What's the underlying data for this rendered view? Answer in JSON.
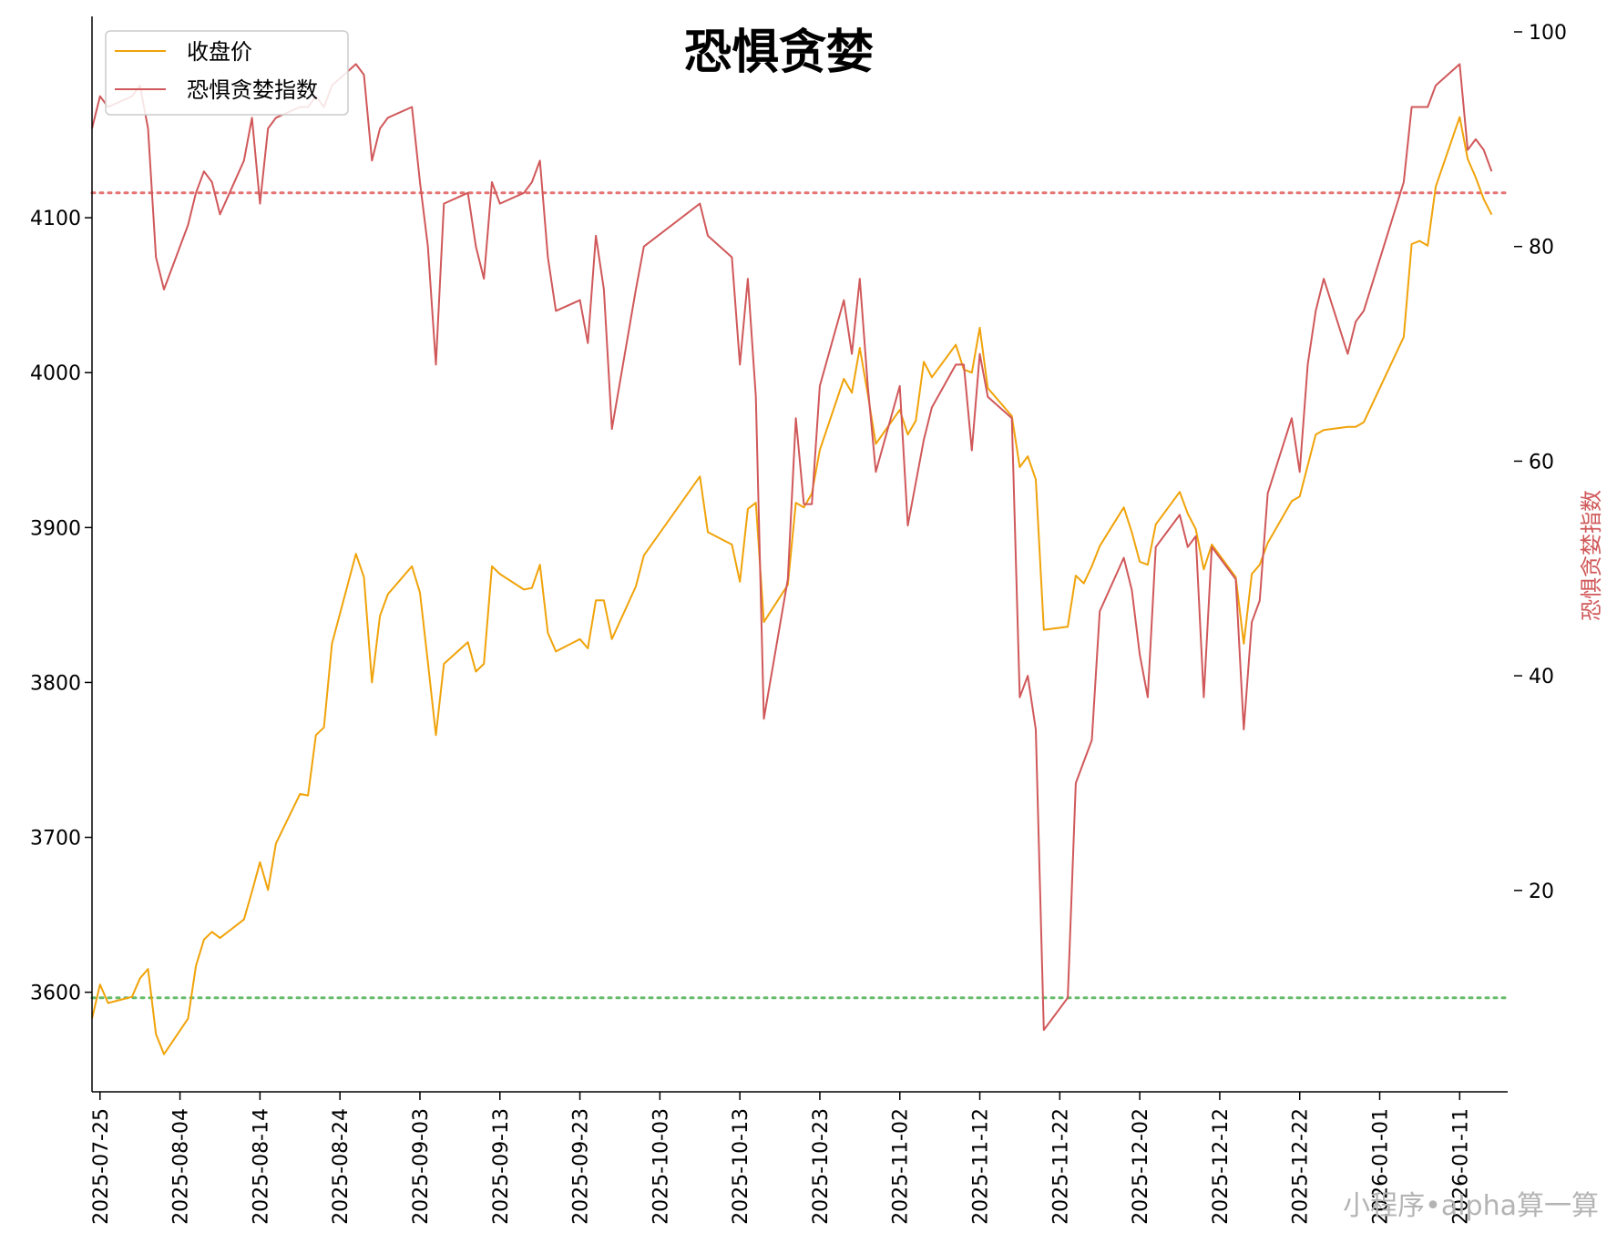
{
  "chart_data": {
    "type": "line",
    "title": "恐惧贪婪",
    "ylabel_right": "恐惧贪婪指数",
    "ylim_left": [
      3541,
      4220
    ],
    "ylim_right": [
      2,
      100
    ],
    "yticks_left": [
      3600,
      3700,
      3800,
      3900,
      4000,
      4100
    ],
    "yticks_right": [
      20,
      40,
      60,
      80,
      100
    ],
    "x_start": "2025-07-24",
    "x_end": "2026-01-17",
    "x_tick_labels": [
      "2025-07-25",
      "2025-08-04",
      "2025-08-14",
      "2025-08-24",
      "2025-09-03",
      "2025-09-13",
      "2025-09-23",
      "2025-10-03",
      "2025-10-13",
      "2025-10-23",
      "2025-11-02",
      "2025-11-12",
      "2025-11-22",
      "2025-12-02",
      "2025-12-12",
      "2025-12-22",
      "2026-01-01",
      "2026-01-11"
    ],
    "legend_position": "top-left",
    "grid": false,
    "reference_lines_right_axis": [
      {
        "value": 85,
        "color": "#e57373"
      },
      {
        "value": 10,
        "color": "#66bb6a"
      }
    ],
    "series": [
      {
        "name": "收盘价",
        "axis": "left",
        "color": "#f0a30a",
        "points": [
          [
            "2025-07-24",
            3583
          ],
          [
            "2025-07-25",
            3605
          ],
          [
            "2025-07-26",
            3593
          ],
          [
            "2025-07-29",
            3597
          ],
          [
            "2025-07-30",
            3609
          ],
          [
            "2025-07-31",
            3615
          ],
          [
            "2025-08-01",
            3573
          ],
          [
            "2025-08-02",
            3560
          ],
          [
            "2025-08-05",
            3583
          ],
          [
            "2025-08-06",
            3617
          ],
          [
            "2025-08-07",
            3634
          ],
          [
            "2025-08-08",
            3639
          ],
          [
            "2025-08-09",
            3635
          ],
          [
            "2025-08-12",
            3647
          ],
          [
            "2025-08-13",
            3665
          ],
          [
            "2025-08-14",
            3684
          ],
          [
            "2025-08-15",
            3666
          ],
          [
            "2025-08-16",
            3696
          ],
          [
            "2025-08-19",
            3728
          ],
          [
            "2025-08-20",
            3727
          ],
          [
            "2025-08-21",
            3766
          ],
          [
            "2025-08-22",
            3771
          ],
          [
            "2025-08-23",
            3825
          ],
          [
            "2025-08-26",
            3883
          ],
          [
            "2025-08-27",
            3868
          ],
          [
            "2025-08-28",
            3800
          ],
          [
            "2025-08-29",
            3843
          ],
          [
            "2025-08-30",
            3857
          ],
          [
            "2025-09-02",
            3875
          ],
          [
            "2025-09-03",
            3858
          ],
          [
            "2025-09-04",
            3813
          ],
          [
            "2025-09-05",
            3766
          ],
          [
            "2025-09-06",
            3812
          ],
          [
            "2025-09-09",
            3826
          ],
          [
            "2025-09-10",
            3807
          ],
          [
            "2025-09-11",
            3812
          ],
          [
            "2025-09-12",
            3875
          ],
          [
            "2025-09-13",
            3870
          ],
          [
            "2025-09-16",
            3860
          ],
          [
            "2025-09-17",
            3861
          ],
          [
            "2025-09-18",
            3876
          ],
          [
            "2025-09-19",
            3832
          ],
          [
            "2025-09-20",
            3820
          ],
          [
            "2025-09-23",
            3828
          ],
          [
            "2025-09-24",
            3822
          ],
          [
            "2025-09-25",
            3853
          ],
          [
            "2025-09-26",
            3853
          ],
          [
            "2025-09-27",
            3828
          ],
          [
            "2025-09-30",
            3862
          ],
          [
            "2025-10-01",
            3882
          ],
          [
            "2025-10-08",
            3933
          ],
          [
            "2025-10-09",
            3897
          ],
          [
            "2025-10-12",
            3889
          ],
          [
            "2025-10-13",
            3865
          ],
          [
            "2025-10-14",
            3912
          ],
          [
            "2025-10-15",
            3916
          ],
          [
            "2025-10-16",
            3839
          ],
          [
            "2025-10-19",
            3863
          ],
          [
            "2025-10-20",
            3916
          ],
          [
            "2025-10-21",
            3913
          ],
          [
            "2025-10-22",
            3922
          ],
          [
            "2025-10-23",
            3950
          ],
          [
            "2025-10-26",
            3996
          ],
          [
            "2025-10-27",
            3987
          ],
          [
            "2025-10-28",
            4016
          ],
          [
            "2025-10-29",
            3986
          ],
          [
            "2025-10-30",
            3954
          ],
          [
            "2025-11-02",
            3976
          ],
          [
            "2025-11-03",
            3960
          ],
          [
            "2025-11-04",
            3969
          ],
          [
            "2025-11-05",
            4007
          ],
          [
            "2025-11-06",
            3997
          ],
          [
            "2025-11-09",
            4018
          ],
          [
            "2025-11-10",
            4002
          ],
          [
            "2025-11-11",
            4000
          ],
          [
            "2025-11-12",
            4029
          ],
          [
            "2025-11-13",
            3990
          ],
          [
            "2025-11-16",
            3972
          ],
          [
            "2025-11-17",
            3939
          ],
          [
            "2025-11-18",
            3946
          ],
          [
            "2025-11-19",
            3931
          ],
          [
            "2025-11-20",
            3834
          ],
          [
            "2025-11-23",
            3836
          ],
          [
            "2025-11-24",
            3869
          ],
          [
            "2025-11-25",
            3864
          ],
          [
            "2025-11-26",
            3875
          ],
          [
            "2025-11-27",
            3888
          ],
          [
            "2025-11-30",
            3913
          ],
          [
            "2025-12-01",
            3897
          ],
          [
            "2025-12-02",
            3878
          ],
          [
            "2025-12-03",
            3876
          ],
          [
            "2025-12-04",
            3902
          ],
          [
            "2025-12-07",
            3923
          ],
          [
            "2025-12-08",
            3909
          ],
          [
            "2025-12-09",
            3899
          ],
          [
            "2025-12-10",
            3873
          ],
          [
            "2025-12-11",
            3889
          ],
          [
            "2025-12-14",
            3868
          ],
          [
            "2025-12-15",
            3825
          ],
          [
            "2025-12-16",
            3870
          ],
          [
            "2025-12-17",
            3876
          ],
          [
            "2025-12-18",
            3890
          ],
          [
            "2025-12-21",
            3917
          ],
          [
            "2025-12-22",
            3920
          ],
          [
            "2025-12-23",
            3940
          ],
          [
            "2025-12-24",
            3960
          ],
          [
            "2025-12-25",
            3963
          ],
          [
            "2025-12-28",
            3965
          ],
          [
            "2025-12-29",
            3965
          ],
          [
            "2025-12-30",
            3968
          ],
          [
            "2026-01-04",
            4023
          ],
          [
            "2026-01-05",
            4083
          ],
          [
            "2026-01-06",
            4085
          ],
          [
            "2026-01-07",
            4082
          ],
          [
            "2026-01-08",
            4120
          ],
          [
            "2026-01-11",
            4165
          ],
          [
            "2026-01-12",
            4138
          ],
          [
            "2026-01-13",
            4126
          ],
          [
            "2026-01-14",
            4112
          ],
          [
            "2026-01-15",
            4102
          ]
        ]
      },
      {
        "name": "恐惧贪婪指数",
        "axis": "right",
        "color": "#d0585a",
        "points": [
          [
            "2025-07-24",
            91
          ],
          [
            "2025-07-25",
            94
          ],
          [
            "2025-07-26",
            93
          ],
          [
            "2025-07-29",
            94
          ],
          [
            "2025-07-30",
            95
          ],
          [
            "2025-07-31",
            91
          ],
          [
            "2025-08-01",
            79
          ],
          [
            "2025-08-02",
            76
          ],
          [
            "2025-08-05",
            82
          ],
          [
            "2025-08-06",
            85
          ],
          [
            "2025-08-07",
            87
          ],
          [
            "2025-08-08",
            86
          ],
          [
            "2025-08-09",
            83
          ],
          [
            "2025-08-12",
            88
          ],
          [
            "2025-08-13",
            92
          ],
          [
            "2025-08-14",
            84
          ],
          [
            "2025-08-15",
            91
          ],
          [
            "2025-08-16",
            92
          ],
          [
            "2025-08-19",
            93
          ],
          [
            "2025-08-20",
            93
          ],
          [
            "2025-08-21",
            94
          ],
          [
            "2025-08-22",
            93
          ],
          [
            "2025-08-23",
            95
          ],
          [
            "2025-08-26",
            97
          ],
          [
            "2025-08-27",
            96
          ],
          [
            "2025-08-28",
            88
          ],
          [
            "2025-08-29",
            91
          ],
          [
            "2025-08-30",
            92
          ],
          [
            "2025-09-02",
            93
          ],
          [
            "2025-09-03",
            86
          ],
          [
            "2025-09-04",
            80
          ],
          [
            "2025-09-05",
            69
          ],
          [
            "2025-09-06",
            84
          ],
          [
            "2025-09-09",
            85
          ],
          [
            "2025-09-10",
            80
          ],
          [
            "2025-09-11",
            77
          ],
          [
            "2025-09-12",
            86
          ],
          [
            "2025-09-13",
            84
          ],
          [
            "2025-09-16",
            85
          ],
          [
            "2025-09-17",
            86
          ],
          [
            "2025-09-18",
            88
          ],
          [
            "2025-09-19",
            79
          ],
          [
            "2025-09-20",
            74
          ],
          [
            "2025-09-23",
            75
          ],
          [
            "2025-09-24",
            71
          ],
          [
            "2025-09-25",
            81
          ],
          [
            "2025-09-26",
            76
          ],
          [
            "2025-09-27",
            63
          ],
          [
            "2025-09-30",
            76
          ],
          [
            "2025-10-01",
            80
          ],
          [
            "2025-10-08",
            84
          ],
          [
            "2025-10-09",
            81
          ],
          [
            "2025-10-12",
            79
          ],
          [
            "2025-10-13",
            69
          ],
          [
            "2025-10-14",
            77
          ],
          [
            "2025-10-15",
            66
          ],
          [
            "2025-10-16",
            36
          ],
          [
            "2025-10-19",
            49
          ],
          [
            "2025-10-20",
            64
          ],
          [
            "2025-10-21",
            56
          ],
          [
            "2025-10-22",
            56
          ],
          [
            "2025-10-23",
            67
          ],
          [
            "2025-10-26",
            75
          ],
          [
            "2025-10-27",
            70
          ],
          [
            "2025-10-28",
            77
          ],
          [
            "2025-10-29",
            67
          ],
          [
            "2025-10-30",
            59
          ],
          [
            "2025-11-02",
            67
          ],
          [
            "2025-11-03",
            54
          ],
          [
            "2025-11-04",
            58
          ],
          [
            "2025-11-05",
            62
          ],
          [
            "2025-11-06",
            65
          ],
          [
            "2025-11-09",
            69
          ],
          [
            "2025-11-10",
            69
          ],
          [
            "2025-11-11",
            61
          ],
          [
            "2025-11-12",
            70
          ],
          [
            "2025-11-13",
            66
          ],
          [
            "2025-11-16",
            64
          ],
          [
            "2025-11-17",
            38
          ],
          [
            "2025-11-18",
            40
          ],
          [
            "2025-11-19",
            35
          ],
          [
            "2025-11-20",
            7
          ],
          [
            "2025-11-23",
            10
          ],
          [
            "2025-11-24",
            30
          ],
          [
            "2025-11-25",
            32
          ],
          [
            "2025-11-26",
            34
          ],
          [
            "2025-11-27",
            46
          ],
          [
            "2025-11-30",
            51
          ],
          [
            "2025-12-01",
            48
          ],
          [
            "2025-12-02",
            42
          ],
          [
            "2025-12-03",
            38
          ],
          [
            "2025-12-04",
            52
          ],
          [
            "2025-12-07",
            55
          ],
          [
            "2025-12-08",
            52
          ],
          [
            "2025-12-09",
            53
          ],
          [
            "2025-12-10",
            38
          ],
          [
            "2025-12-11",
            52
          ],
          [
            "2025-12-14",
            49
          ],
          [
            "2025-12-15",
            35
          ],
          [
            "2025-12-16",
            45
          ],
          [
            "2025-12-17",
            47
          ],
          [
            "2025-12-18",
            57
          ],
          [
            "2025-12-21",
            64
          ],
          [
            "2025-12-22",
            59
          ],
          [
            "2025-12-23",
            69
          ],
          [
            "2025-12-24",
            74
          ],
          [
            "2025-12-25",
            77
          ],
          [
            "2025-12-28",
            70
          ],
          [
            "2025-12-29",
            73
          ],
          [
            "2025-12-30",
            74
          ],
          [
            "2026-01-04",
            86
          ],
          [
            "2026-01-05",
            93
          ],
          [
            "2026-01-06",
            93
          ],
          [
            "2026-01-07",
            93
          ],
          [
            "2026-01-08",
            95
          ],
          [
            "2026-01-11",
            97
          ],
          [
            "2026-01-12",
            89
          ],
          [
            "2026-01-13",
            90
          ],
          [
            "2026-01-14",
            89
          ],
          [
            "2026-01-15",
            87
          ]
        ]
      }
    ]
  },
  "watermark": "小程序•alpha算一算"
}
